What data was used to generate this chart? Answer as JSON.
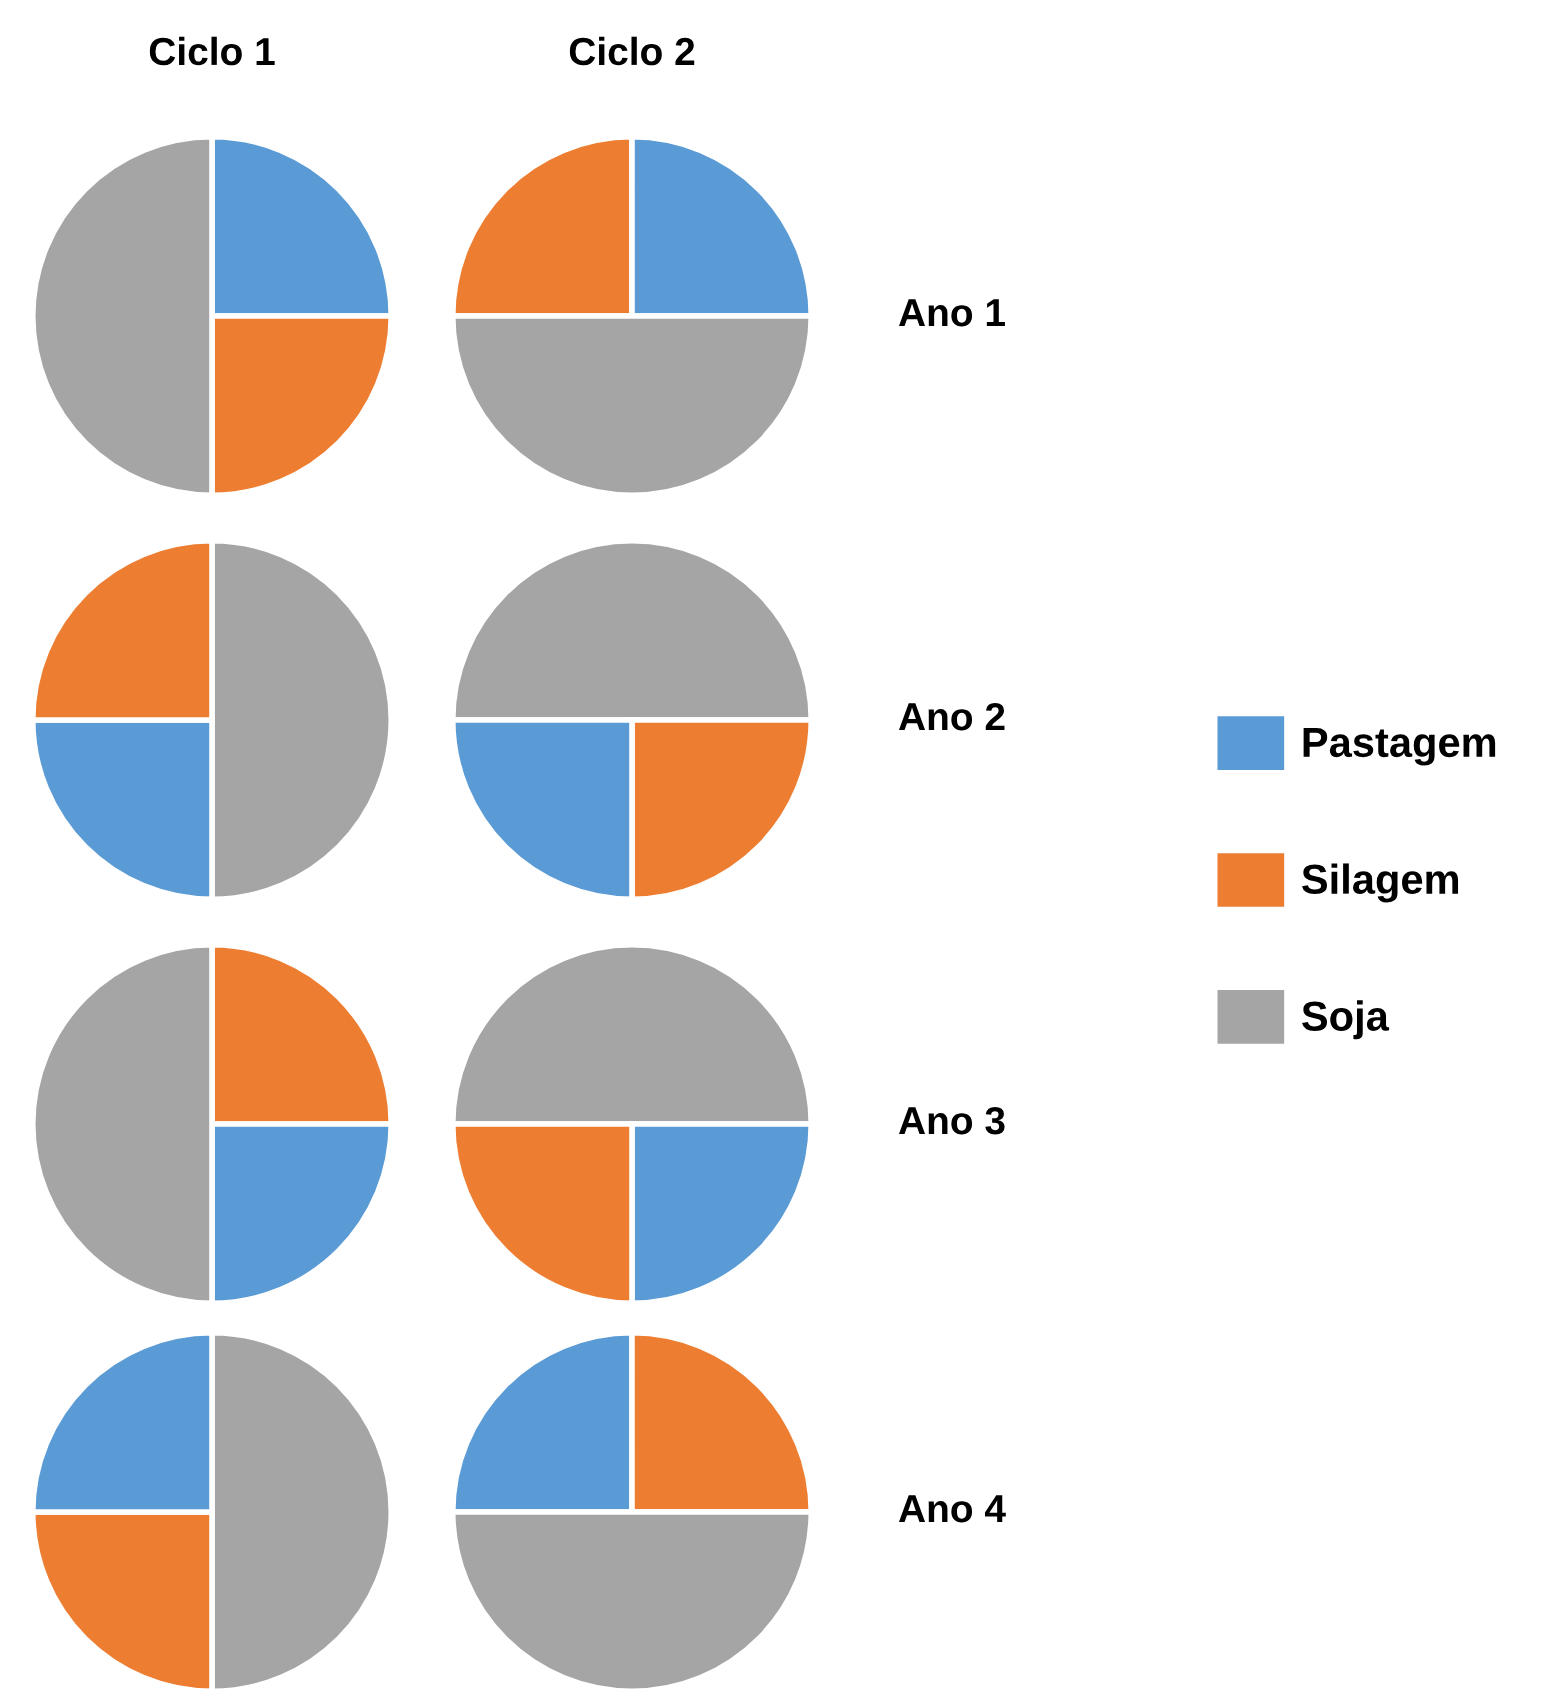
{
  "chart_data": [
    {
      "type": "pie",
      "title": "Ciclo 1",
      "categories": [
        "Pastagem",
        "Silagem",
        "Soja"
      ],
      "values": [
        25,
        25,
        50
      ],
      "colors": [
        "#5b9bd5",
        "#ed7d31",
        "#a5a5a5"
      ],
      "legend": "right"
    },
    {
      "type": "pie",
      "title": "Ciclo 2",
      "categories": [
        null,
        null,
        null
      ],
      "values": [
        25,
        25,
        50
      ],
      "colors": [
        "#ed7d31",
        "#5b9bd5",
        "#a5a5a5"
      ],
      "annotations": [
        "Ano 1"
      ]
    },
    {
      "type": "pie",
      "categories": [
        null,
        null,
        null
      ],
      "values": [
        50,
        25,
        25
      ],
      "colors": [
        "#a5a5a5",
        "#5b9bd5",
        "#ed7d31"
      ]
    },
    {
      "type": "pie",
      "categories": [
        null,
        null,
        null
      ],
      "values": [
        50,
        25,
        25
      ],
      "colors": [
        "#a5a5a5",
        "#ed7d31",
        "#5b9bd5"
      ],
      "annotations": [
        "Ano 2"
      ]
    },
    {
      "type": "pie",
      "categories": [
        null,
        null,
        null
      ],
      "values": [
        25,
        25,
        50
      ],
      "colors": [
        "#ed7d31",
        "#5b9bd5",
        "#a5a5a5"
      ]
    },
    {
      "type": "pie",
      "categories": [
        null,
        null,
        null
      ],
      "values": [
        50,
        25,
        25
      ],
      "colors": [
        "#a5a5a5",
        "#5b9bd5",
        "#ed7d31"
      ],
      "annotations": [
        "Ano 3"
      ]
    },
    {
      "type": "pie",
      "categories": [
        null,
        null,
        null
      ],
      "values": [
        50,
        25,
        25
      ],
      "colors": [
        "#a5a5a5",
        "#ed7d31",
        "#5b9bd5"
      ]
    },
    {
      "type": "pie",
      "categories": [
        null,
        null,
        null
      ],
      "values": [
        25,
        25,
        50
      ],
      "colors": [
        "#5b9bd5",
        "#ed7d31",
        "#a5a5a5"
      ],
      "annotations": [
        "Ano 4"
      ]
    }
  ]
}
